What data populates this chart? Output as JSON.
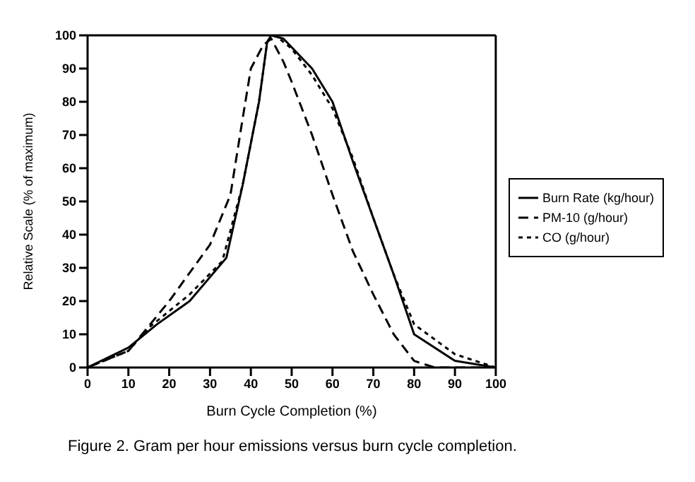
{
  "chart_data": {
    "type": "line",
    "xlabel": "Burn Cycle Completion (%)",
    "ylabel": "Relative Scale (% of maximum)",
    "annotations": [
      "Figure 2.  Gram per hour emissions versus burn cycle completion."
    ],
    "xlim": [
      0,
      100
    ],
    "xticks": [
      0,
      10,
      20,
      30,
      40,
      50,
      60,
      70,
      80,
      90,
      100
    ],
    "ylim": [
      0,
      100
    ],
    "yticks": [
      0,
      10,
      20,
      30,
      40,
      50,
      60,
      70,
      80,
      90,
      100
    ],
    "legend": "right",
    "marker": "none",
    "series": [
      {
        "name": "Burn Rate (kg/hour)",
        "color": "#000000",
        "line_style": "solid",
        "x": [
          0,
          10,
          17,
          25,
          34,
          38,
          42,
          44,
          45,
          48,
          55,
          60,
          65,
          70,
          75,
          80,
          90,
          100
        ],
        "values": [
          0,
          6,
          13,
          20,
          33,
          55,
          80,
          98,
          100,
          99,
          90,
          80,
          62,
          45,
          28,
          10,
          2,
          0
        ]
      },
      {
        "name": "PM-10 (g/hour)",
        "color": "#000000",
        "line_style": "dashed",
        "x": [
          0,
          10,
          20,
          30,
          35,
          38,
          40,
          43,
          45,
          48,
          50,
          55,
          60,
          65,
          70,
          75,
          80,
          85,
          100
        ],
        "values": [
          0,
          5,
          20,
          37,
          52,
          75,
          90,
          97,
          99,
          92,
          86,
          70,
          52,
          35,
          22,
          10,
          2,
          0,
          0
        ]
      },
      {
        "name": "CO (g/hour)",
        "color": "#000000",
        "line_style": "dotted",
        "x": [
          0,
          10,
          15,
          25,
          33,
          38,
          42,
          44,
          46,
          50,
          55,
          60,
          65,
          70,
          75,
          80,
          90,
          100
        ],
        "values": [
          0,
          5,
          12,
          22,
          32,
          55,
          80,
          98,
          100,
          96,
          88,
          78,
          63,
          45,
          28,
          13,
          4,
          0
        ]
      }
    ]
  }
}
